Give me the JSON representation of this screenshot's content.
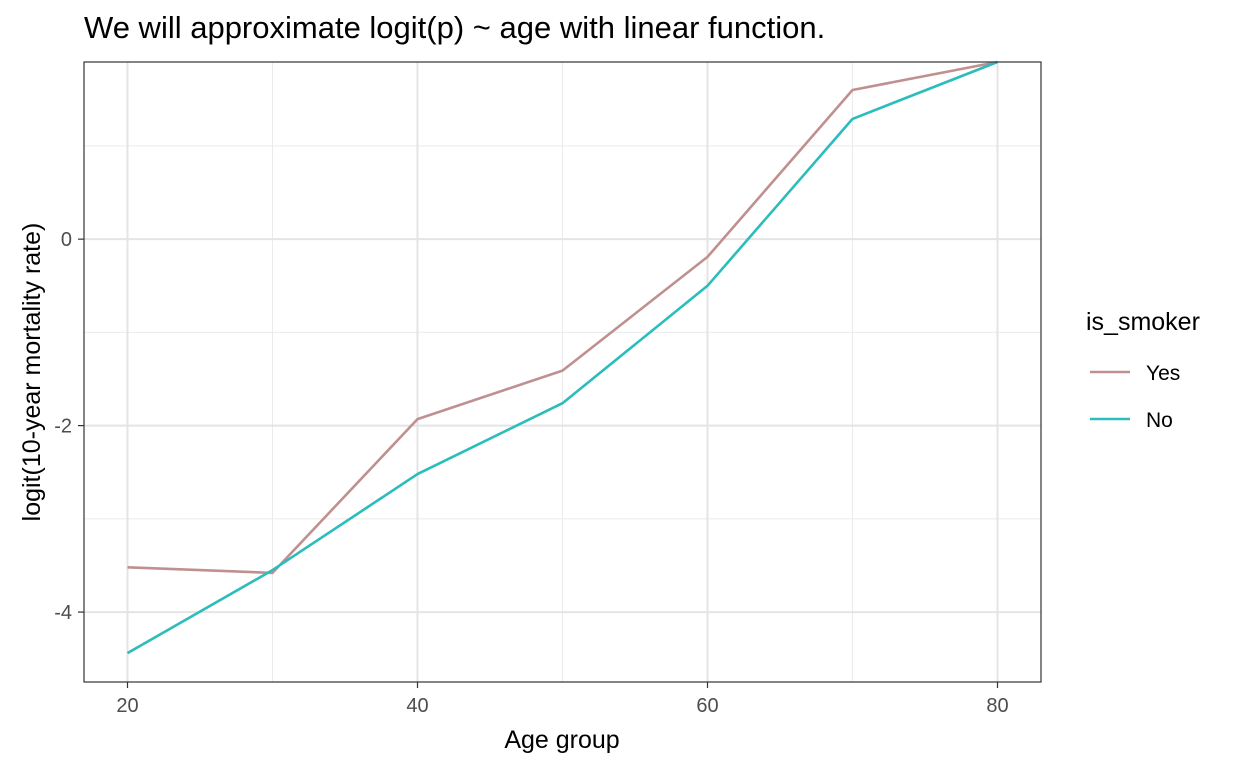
{
  "chart_data": {
    "type": "line",
    "title": "We will approximate logit(p) ~ age with linear function.",
    "xlabel": "Age group",
    "ylabel": "logit(10-year mortality rate)",
    "x": [
      20,
      30,
      40,
      50,
      60,
      70,
      80
    ],
    "x_ticks": [
      20,
      40,
      60,
      80
    ],
    "y_ticks": [
      -4,
      -2,
      0
    ],
    "xlim": [
      17,
      83
    ],
    "ylim": [
      -4.75,
      1.9
    ],
    "grid": true,
    "legend": {
      "title": "is_smoker",
      "position": "right"
    },
    "series": [
      {
        "name": "Yes",
        "color": "#c09090",
        "values": [
          -3.52,
          -3.58,
          -1.93,
          -1.41,
          -0.19,
          1.6,
          1.9
        ]
      },
      {
        "name": "No",
        "color": "#2bbcbc",
        "values": [
          -4.44,
          -3.55,
          -2.52,
          -1.76,
          -0.5,
          1.29,
          1.9
        ]
      }
    ]
  }
}
